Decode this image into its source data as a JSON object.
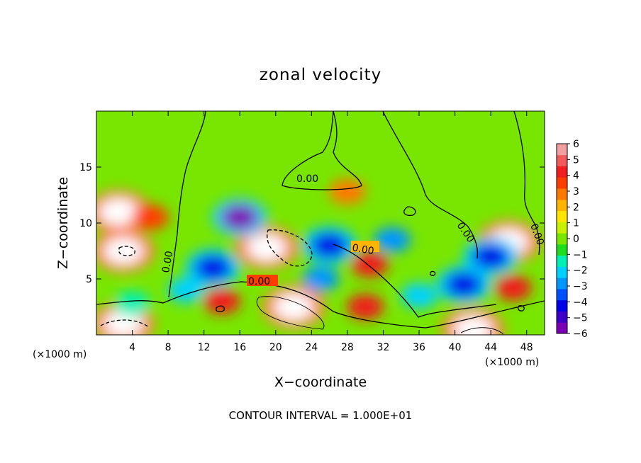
{
  "chart_data": {
    "type": "heatmap",
    "title": "zonal velocity",
    "xlabel": "X−coordinate",
    "ylabel": "Z−coordinate",
    "x_unit": "(×1000 m)",
    "y_unit": "(×1000 m)",
    "xlim": [
      0,
      50
    ],
    "ylim": [
      0,
      20
    ],
    "x_ticks": [
      4,
      8,
      12,
      16,
      20,
      24,
      28,
      32,
      36,
      40,
      44,
      48
    ],
    "y_ticks": [
      5,
      10,
      15
    ],
    "colorbar": {
      "min": -6,
      "max": 6,
      "ticks": [
        6,
        5,
        4,
        3,
        2,
        1,
        0,
        -1,
        -2,
        -3,
        -4,
        -5,
        -6
      ],
      "tick_labels": [
        "6",
        "5",
        "4",
        "3",
        "2",
        "1",
        "0",
        "−1",
        "−2",
        "−3",
        "−4",
        "−5",
        "−6"
      ],
      "colors": [
        "#7b00b4",
        "#3c00c8",
        "#0000e6",
        "#0050ff",
        "#0096ff",
        "#00d2ff",
        "#00f0b4",
        "#1edc1e",
        "#78e600",
        "#c8f000",
        "#ffe600",
        "#ffb400",
        "#ff7800",
        "#ff3c00",
        "#f01e1e",
        "#f05a5a",
        "#f0a0a0"
      ]
    },
    "contour_labels": [
      "0.00",
      "0.00",
      "0.00",
      "0.00",
      "0.00",
      "0.00"
    ],
    "contour_interval_text": "CONTOUR INTERVAL = 1.000E+01",
    "features": [
      {
        "x": 3,
        "z": 7.5,
        "value": 7
      },
      {
        "x": 2.5,
        "z": 11,
        "value": 7
      },
      {
        "x": 19,
        "z": 7.8,
        "value": 8
      },
      {
        "x": 22,
        "z": 2.5,
        "value": 8
      },
      {
        "x": 46,
        "z": 8.3,
        "value": 7
      },
      {
        "x": 3,
        "z": 1,
        "value": 7
      },
      {
        "x": 42,
        "z": 0.5,
        "value": 7
      },
      {
        "x": 6,
        "z": 10.5,
        "value": 3.5
      },
      {
        "x": 28,
        "z": 12.8,
        "value": 2.5
      },
      {
        "x": 30.5,
        "z": 6.3,
        "value": 4.5
      },
      {
        "x": 46.5,
        "z": 4.2,
        "value": 4.5
      },
      {
        "x": 30,
        "z": 2.5,
        "value": 4
      },
      {
        "x": 16,
        "z": 10.5,
        "value": -5.5
      },
      {
        "x": 13,
        "z": 6,
        "value": -4.5
      },
      {
        "x": 26,
        "z": 8,
        "value": -4
      },
      {
        "x": 33,
        "z": 8.5,
        "value": -3
      },
      {
        "x": 41,
        "z": 4.5,
        "value": -4.5
      },
      {
        "x": 44,
        "z": 7,
        "value": -4
      },
      {
        "x": 10,
        "z": 4,
        "value": -2
      },
      {
        "x": 36,
        "z": 3.5,
        "value": -2
      },
      {
        "x": 25,
        "z": 5,
        "value": -3
      },
      {
        "x": 4,
        "z": 2.8,
        "value": -1.5
      },
      {
        "x": 14,
        "z": 3,
        "value": 4
      }
    ]
  }
}
